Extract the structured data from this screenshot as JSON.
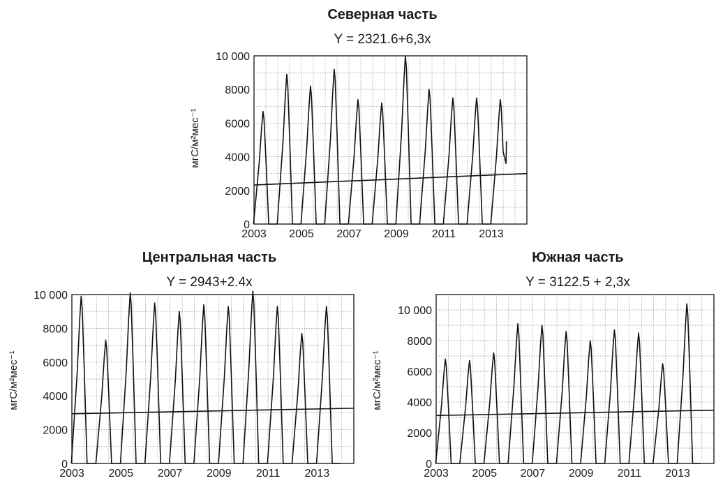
{
  "chart_data": [
    {
      "type": "line",
      "title": "Северная часть",
      "subtitle": "Y = 2321.6+6,3x",
      "ylabel": "мгС/м²мес⁻¹",
      "xlabel": "",
      "x_range": [
        2003,
        2014.5
      ],
      "ylim": [
        0,
        10000
      ],
      "x_ticks": [
        "2003",
        "2005",
        "2007",
        "2009",
        "2011",
        "2013"
      ],
      "y_ticks": [
        "0",
        "2000",
        "4000",
        "6000",
        "8000",
        "10 000"
      ],
      "grid": true,
      "series": [
        {
          "kind": "seasonal",
          "peaks": [
            {
              "year": 2003,
              "max": 6700,
              "min": 0
            },
            {
              "year": 2004,
              "max": 8900,
              "min": 0
            },
            {
              "year": 2005,
              "max": 8200,
              "min": 0
            },
            {
              "year": 2006,
              "max": 9200,
              "min": 0
            },
            {
              "year": 2007,
              "max": 7400,
              "min": 0
            },
            {
              "year": 2008,
              "max": 7200,
              "min": 0
            },
            {
              "year": 2009,
              "max": 10000,
              "min": 0
            },
            {
              "year": 2010,
              "max": 8000,
              "min": 0
            },
            {
              "year": 2011,
              "max": 7500,
              "min": 0
            },
            {
              "year": 2012,
              "max": 7500,
              "min": 0
            },
            {
              "year": 2013,
              "max": 7400,
              "min": 3600
            }
          ]
        },
        {
          "kind": "trend",
          "x": [
            2003,
            2014.5
          ],
          "y": [
            2321.6,
            3000
          ]
        }
      ]
    },
    {
      "type": "line",
      "title": "Центральная часть",
      "subtitle": "Y = 2943+2.4x",
      "ylabel": "мгС/м²мес⁻¹",
      "xlabel": "",
      "x_range": [
        2003,
        2014.5
      ],
      "ylim": [
        0,
        10000
      ],
      "x_ticks": [
        "2003",
        "2005",
        "2007",
        "2009",
        "2011",
        "2013"
      ],
      "y_ticks": [
        "0",
        "2000",
        "4000",
        "6000",
        "8000",
        "10 000"
      ],
      "grid": true,
      "series": [
        {
          "kind": "seasonal",
          "peaks": [
            {
              "year": 2003,
              "max": 9900,
              "min": 0
            },
            {
              "year": 2004,
              "max": 7300,
              "min": 0
            },
            {
              "year": 2005,
              "max": 10100,
              "min": 0
            },
            {
              "year": 2006,
              "max": 9500,
              "min": 0
            },
            {
              "year": 2007,
              "max": 9000,
              "min": 0
            },
            {
              "year": 2008,
              "max": 9400,
              "min": 0
            },
            {
              "year": 2009,
              "max": 9300,
              "min": 0
            },
            {
              "year": 2010,
              "max": 10200,
              "min": 0
            },
            {
              "year": 2011,
              "max": 9300,
              "min": 0
            },
            {
              "year": 2012,
              "max": 7700,
              "min": 0
            },
            {
              "year": 2013,
              "max": 9300,
              "min": 0
            }
          ]
        },
        {
          "kind": "trend",
          "x": [
            2003,
            2014.5
          ],
          "y": [
            2943,
            3270
          ]
        }
      ]
    },
    {
      "type": "line",
      "title": "Южная часть",
      "subtitle": "Y = 3122.5 + 2,3x",
      "ylabel": "мгС/м²мес⁻¹",
      "xlabel": "",
      "x_range": [
        2003,
        2014.5
      ],
      "ylim": [
        0,
        11000
      ],
      "x_ticks": [
        "2003",
        "2005",
        "2007",
        "2009",
        "2011",
        "2013"
      ],
      "y_ticks": [
        "0",
        "2000",
        "4000",
        "6000",
        "8000",
        "10 000"
      ],
      "grid": true,
      "series": [
        {
          "kind": "seasonal",
          "peaks": [
            {
              "year": 2003,
              "max": 6800,
              "min": 0
            },
            {
              "year": 2004,
              "max": 6700,
              "min": 0
            },
            {
              "year": 2005,
              "max": 7200,
              "min": 0
            },
            {
              "year": 2006,
              "max": 9100,
              "min": 0
            },
            {
              "year": 2007,
              "max": 9000,
              "min": 0
            },
            {
              "year": 2008,
              "max": 8600,
              "min": 0
            },
            {
              "year": 2009,
              "max": 8000,
              "min": 0
            },
            {
              "year": 2010,
              "max": 8700,
              "min": 0
            },
            {
              "year": 2011,
              "max": 8500,
              "min": 0
            },
            {
              "year": 2012,
              "max": 6500,
              "min": 0
            },
            {
              "year": 2013,
              "max": 10400,
              "min": 0
            }
          ]
        },
        {
          "kind": "trend",
          "x": [
            2003,
            2014.5
          ],
          "y": [
            3122.5,
            3470
          ]
        }
      ]
    }
  ]
}
